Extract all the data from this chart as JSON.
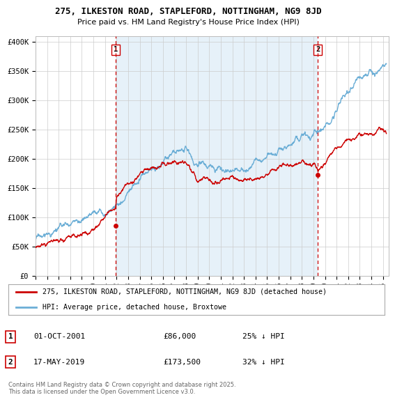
{
  "title": "275, ILKESTON ROAD, STAPLEFORD, NOTTINGHAM, NG9 8JD",
  "subtitle": "Price paid vs. HM Land Registry's House Price Index (HPI)",
  "ylabel_ticks": [
    "£0",
    "£50K",
    "£100K",
    "£150K",
    "£200K",
    "£250K",
    "£300K",
    "£350K",
    "£400K"
  ],
  "ytick_values": [
    0,
    50000,
    100000,
    150000,
    200000,
    250000,
    300000,
    350000,
    400000
  ],
  "ylim": [
    0,
    410000
  ],
  "xlim_start": 1995.0,
  "xlim_end": 2025.5,
  "hpi_color": "#6baed6",
  "hpi_fill_color": "#d6e8f5",
  "price_color": "#cc0000",
  "vline_color": "#cc0000",
  "marker1_date": 2001.92,
  "marker1_price": 86000,
  "marker2_date": 2019.37,
  "marker2_price": 173500,
  "legend_label1": "275, ILKESTON ROAD, STAPLEFORD, NOTTINGHAM, NG9 8JD (detached house)",
  "legend_label2": "HPI: Average price, detached house, Broxtowe",
  "table_row1": [
    "1",
    "01-OCT-2001",
    "£86,000",
    "25% ↓ HPI"
  ],
  "table_row2": [
    "2",
    "17-MAY-2019",
    "£173,500",
    "32% ↓ HPI"
  ],
  "footnote": "Contains HM Land Registry data © Crown copyright and database right 2025.\nThis data is licensed under the Open Government Licence v3.0.",
  "background_color": "#ffffff",
  "grid_color": "#cccccc",
  "hpi_key_years": [
    1995,
    1996,
    1997,
    1998,
    1999,
    2000,
    2001,
    2002,
    2003,
    2004,
    2005,
    2006,
    2007,
    2008,
    2009,
    2010,
    2011,
    2012,
    2013,
    2014,
    2015,
    2016,
    2017,
    2018,
    2019,
    2020,
    2021,
    2022,
    2023,
    2024,
    2025
  ],
  "hpi_key_values": [
    65000,
    70000,
    74000,
    79000,
    86000,
    96000,
    110000,
    130000,
    155000,
    175000,
    185000,
    195000,
    210000,
    205000,
    178000,
    185000,
    185000,
    183000,
    188000,
    200000,
    210000,
    220000,
    235000,
    248000,
    260000,
    265000,
    290000,
    320000,
    340000,
    355000,
    352000
  ],
  "prop_key_years": [
    1995,
    1996,
    1997,
    1998,
    1999,
    2000,
    2001,
    2001.92,
    2002,
    2003,
    2004,
    2005,
    2006,
    2007,
    2008,
    2009,
    2010,
    2011,
    2012,
    2013,
    2014,
    2015,
    2016,
    2017,
    2018,
    2019,
    2019.37,
    2020,
    2021,
    2022,
    2023,
    2024,
    2025
  ],
  "prop_key_values": [
    50000,
    52000,
    54000,
    56000,
    58000,
    62000,
    70000,
    86000,
    105000,
    125000,
    140000,
    148000,
    152000,
    157000,
    153000,
    133000,
    138000,
    138000,
    137000,
    140000,
    148000,
    153000,
    160000,
    168000,
    178000,
    180000,
    173500,
    185000,
    205000,
    218000,
    230000,
    237000,
    243000
  ],
  "noise_seed": 17,
  "hpi_noise_scale": 1200,
  "prop_noise_scale": 900
}
